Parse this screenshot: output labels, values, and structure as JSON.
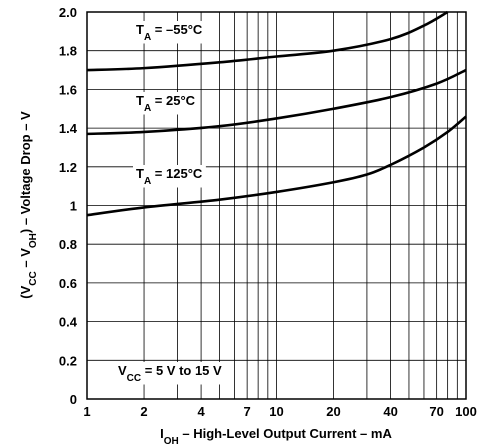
{
  "chart_data": {
    "type": "line",
    "x_scale": "log",
    "xlim": [
      1,
      100
    ],
    "ylim": [
      0,
      2.0
    ],
    "grid": true,
    "x_ticks": [
      {
        "v": 1,
        "label": "1"
      },
      {
        "v": 2,
        "label": "2"
      },
      {
        "v": 4,
        "label": "4"
      },
      {
        "v": 7,
        "label": "7"
      },
      {
        "v": 10,
        "label": "10"
      },
      {
        "v": 20,
        "label": "20"
      },
      {
        "v": 40,
        "label": "40"
      },
      {
        "v": 70,
        "label": "70"
      },
      {
        "v": 100,
        "label": "100"
      }
    ],
    "y_ticks": [
      {
        "v": 0,
        "label": "0"
      },
      {
        "v": 0.2,
        "label": "0.2"
      },
      {
        "v": 0.4,
        "label": "0.4"
      },
      {
        "v": 0.6,
        "label": "0.6"
      },
      {
        "v": 0.8,
        "label": "0.8"
      },
      {
        "v": 1.0,
        "label": "1"
      },
      {
        "v": 1.2,
        "label": "1.2"
      },
      {
        "v": 1.4,
        "label": "1.4"
      },
      {
        "v": 1.6,
        "label": "1.6"
      },
      {
        "v": 1.8,
        "label": "1.8"
      },
      {
        "v": 2.0,
        "label": "2.0"
      }
    ],
    "xlabel": {
      "a": "I",
      "sub": "OH",
      "b": " – High-Level Output Current – mA"
    },
    "ylabel": {
      "a": "(V",
      "s1": "CC",
      "b": " – V",
      "s2": "OH",
      "c": ") – Voltage Drop – V"
    },
    "series": [
      {
        "label": {
          "a": "T",
          "sub": "A",
          "b": " = –55°C"
        },
        "x": [
          1,
          2,
          5,
          10,
          20,
          40,
          60,
          80
        ],
        "y": [
          1.7,
          1.71,
          1.74,
          1.77,
          1.8,
          1.86,
          1.93,
          2.0
        ]
      },
      {
        "label": {
          "a": "T",
          "sub": "A",
          "b": " = 25°C"
        },
        "x": [
          1,
          2,
          5,
          10,
          20,
          40,
          70,
          100
        ],
        "y": [
          1.37,
          1.38,
          1.41,
          1.45,
          1.5,
          1.56,
          1.63,
          1.7
        ]
      },
      {
        "label": {
          "a": "T",
          "sub": "A",
          "b": " = 125°C"
        },
        "x": [
          1,
          2,
          5,
          10,
          20,
          30,
          40,
          60,
          80,
          100
        ],
        "y": [
          0.95,
          0.99,
          1.03,
          1.07,
          1.12,
          1.16,
          1.21,
          1.3,
          1.38,
          1.46
        ]
      }
    ],
    "annotation": {
      "a": "V",
      "sub": "CC",
      "b": " = 5 V to 15 V"
    }
  }
}
